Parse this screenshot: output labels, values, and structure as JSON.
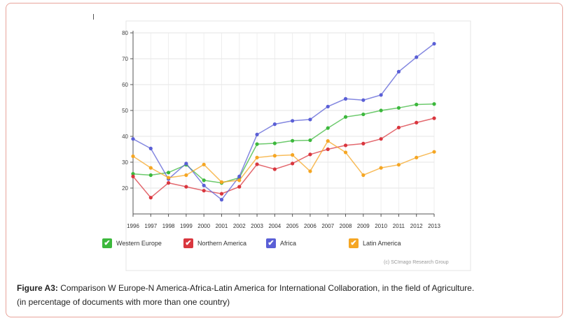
{
  "caption": {
    "label": "Figure A3:",
    "text": "Comparison W Europe-N America-Africa-Latin America for International Collaboration, in the field of Agriculture.",
    "subtext": "(in percentage of documents with more than one country)"
  },
  "credit": "(c) SCImago Research Group",
  "chart_data": {
    "type": "line",
    "title": "",
    "xlabel": "",
    "ylabel": "",
    "x": [
      1996,
      1997,
      1998,
      1999,
      2000,
      2001,
      2002,
      2003,
      2004,
      2005,
      2006,
      2007,
      2008,
      2009,
      2010,
      2011,
      2012,
      2013
    ],
    "ylim": [
      10,
      80
    ],
    "yticks": [
      20,
      30,
      40,
      50,
      60,
      70,
      80
    ],
    "grid": true,
    "legend_position": "bottom",
    "series": [
      {
        "name": "Western Europe",
        "color": "#3cb83c",
        "values": [
          25.5,
          25,
          26,
          29,
          23,
          22,
          24,
          37,
          37.3,
          38.3,
          38.5,
          43.2,
          47.5,
          48.5,
          50,
          51,
          52.3,
          52.5
        ]
      },
      {
        "name": "Northern America",
        "color": "#d9363e",
        "values": [
          24.5,
          16.3,
          22,
          20.5,
          19,
          17.8,
          20.5,
          29.2,
          27.3,
          29.5,
          33,
          35,
          36.5,
          37.2,
          39,
          43.4,
          45.3,
          47
        ]
      },
      {
        "name": "Africa",
        "color": "#5a5fd6",
        "values": [
          39,
          35.3,
          23.5,
          29.5,
          21,
          15.5,
          24.5,
          40.7,
          44.7,
          46,
          46.5,
          51.5,
          54.5,
          54,
          56,
          65,
          70.6,
          75.8
        ]
      },
      {
        "name": "Latin America",
        "color": "#f5a623",
        "values": [
          32.3,
          27.8,
          24,
          25,
          29.1,
          22.3,
          23,
          31.8,
          32.5,
          32.8,
          26.5,
          38.2,
          33.8,
          25,
          27.8,
          29,
          31.8,
          34
        ]
      }
    ]
  }
}
